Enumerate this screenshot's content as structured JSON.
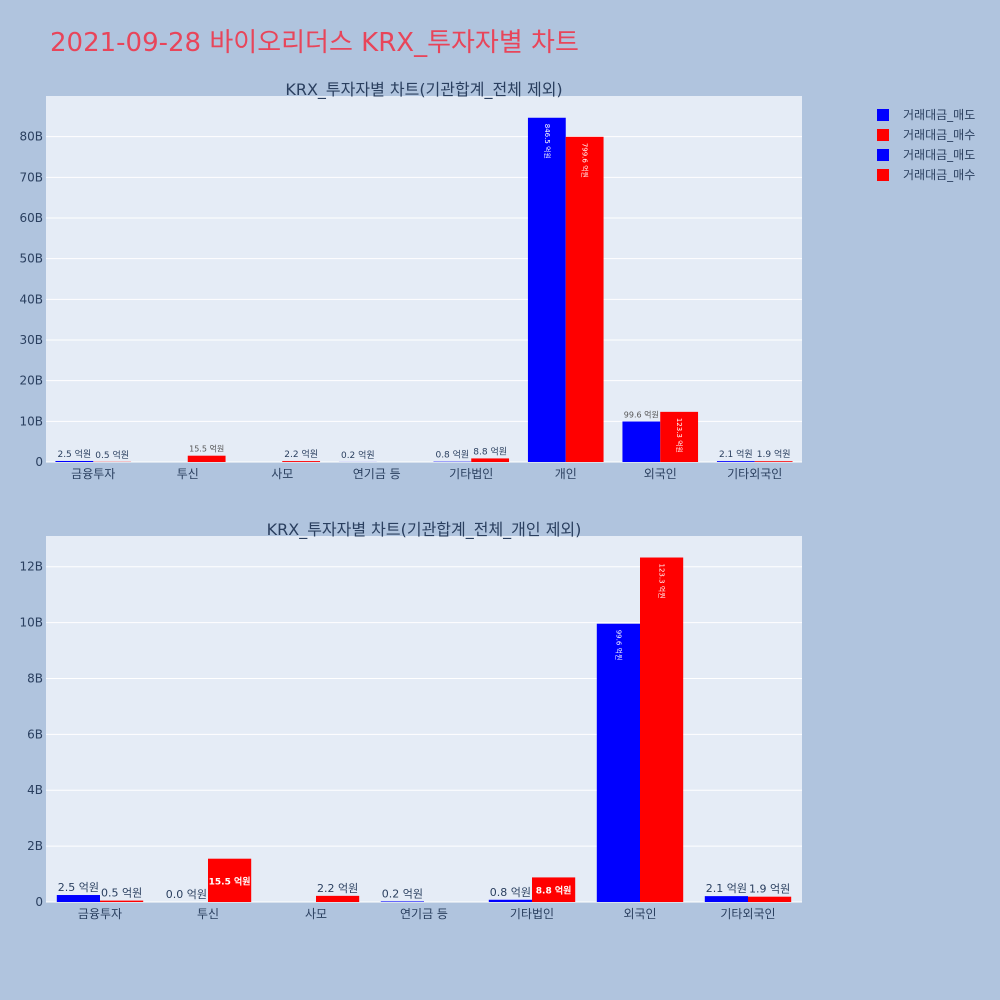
{
  "page_title": "2021-09-28 바이오리더스 KRX_투자자별 차트",
  "colors": {
    "sell": "#0000ff",
    "buy": "#ff0000",
    "plot_bg": "#e5ecf6",
    "page_bg": "#b0c4de",
    "title": "#e8455a"
  },
  "legend": {
    "placement": "top-right",
    "items": [
      {
        "label": "거래대금_매도",
        "color": "#0000ff"
      },
      {
        "label": "거래대금_매수",
        "color": "#ff0000"
      },
      {
        "label": "거래대금_매도",
        "color": "#0000ff"
      },
      {
        "label": "거래대금_매수",
        "color": "#ff0000"
      }
    ]
  },
  "chart_data": [
    {
      "type": "bar",
      "title": "KRX_투자자별 차트(기관합계_전체 제외)",
      "categories": [
        "금융투자",
        "투신",
        "사모",
        "연기금 등",
        "기타법인",
        "개인",
        "외국인",
        "기타외국인"
      ],
      "series": [
        {
          "name": "거래대금_매도",
          "values": [
            0.25,
            0.0,
            0.0,
            0.02,
            0.08,
            84.65,
            9.96,
            0.21
          ],
          "labels": [
            "2.5 억원",
            "",
            "",
            "0.2 억원",
            "0.8 억원",
            "846.5 억원",
            "99.6 억원",
            "2.1 억원"
          ]
        },
        {
          "name": "거래대금_매수",
          "values": [
            0.05,
            1.55,
            0.22,
            0.0,
            0.88,
            79.96,
            12.33,
            0.19
          ],
          "labels": [
            "0.5 억원",
            "15.5 억원",
            "2.2 억원",
            "",
            "8.8 억원",
            "799.6 억원",
            "123.3 억원",
            "1.9 억원"
          ]
        }
      ],
      "ylim": [
        0,
        90
      ],
      "yticks": [
        0,
        10,
        20,
        30,
        40,
        50,
        60,
        70,
        80
      ],
      "ytick_labels": [
        "0",
        "10B",
        "20B",
        "30B",
        "40B",
        "50B",
        "60B",
        "70B",
        "80B"
      ],
      "grid": true
    },
    {
      "type": "bar",
      "title": "KRX_투자자별 차트(기관합계_전체_개인 제외)",
      "categories": [
        "금융투자",
        "투신",
        "사모",
        "연기금 등",
        "기타법인",
        "외국인",
        "기타외국인"
      ],
      "series": [
        {
          "name": "거래대금_매도",
          "values": [
            0.25,
            0.0,
            0.0,
            0.02,
            0.08,
            9.96,
            0.21
          ],
          "labels": [
            "2.5 억원",
            "0.0 억원",
            "",
            "0.2 억원",
            "0.8 억원",
            "99.6 억원",
            "2.1 억원"
          ]
        },
        {
          "name": "거래대금_매수",
          "values": [
            0.05,
            1.55,
            0.22,
            0.0,
            0.88,
            12.33,
            0.19
          ],
          "labels": [
            "0.5 억원",
            "15.5 억원",
            "2.2 억원",
            "",
            "8.8 억원",
            "123.3 억원",
            "1.9 억원"
          ]
        }
      ],
      "ylim": [
        0,
        13.1
      ],
      "yticks": [
        0,
        2,
        4,
        6,
        8,
        10,
        12
      ],
      "ytick_labels": [
        "0",
        "2B",
        "4B",
        "6B",
        "8B",
        "10B",
        "12B"
      ],
      "grid": true
    }
  ]
}
